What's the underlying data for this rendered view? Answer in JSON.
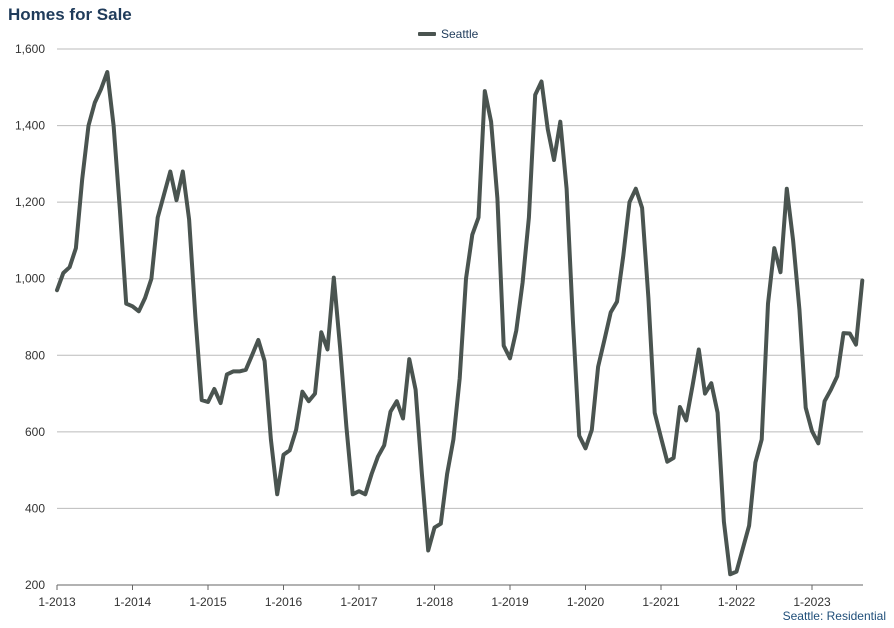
{
  "chart_data": {
    "type": "line",
    "title": "Homes for Sale",
    "legend": "top-center",
    "grid": true,
    "ylim": [
      200,
      1600
    ],
    "yticks": [
      200,
      400,
      600,
      800,
      1000,
      1200,
      1400,
      1600
    ],
    "xticks": [
      "1-2013",
      "1-2014",
      "1-2015",
      "1-2016",
      "1-2017",
      "1-2018",
      "1-2019",
      "1-2020",
      "1-2021",
      "1-2022",
      "1-2023"
    ],
    "series": [
      {
        "name": "Seattle",
        "color": "#4a5450",
        "values": [
          970,
          1015,
          1030,
          1080,
          1260,
          1400,
          1460,
          1495,
          1540,
          1400,
          1180,
          935,
          928,
          915,
          950,
          1000,
          1160,
          1220,
          1280,
          1205,
          1280,
          1155,
          900,
          683,
          678,
          712,
          675,
          750,
          758,
          758,
          762,
          800,
          840,
          785,
          580,
          437,
          540,
          552,
          605,
          705,
          680,
          700,
          860,
          815,
          1003,
          820,
          613,
          437,
          445,
          437,
          490,
          535,
          565,
          653,
          680,
          635,
          790,
          710,
          490,
          290,
          350,
          360,
          490,
          580,
          740,
          1000,
          1115,
          1160,
          1490,
          1410,
          1210,
          825,
          792,
          865,
          990,
          1160,
          1480,
          1515,
          1390,
          1310,
          1410,
          1235,
          890,
          590,
          557,
          605,
          770,
          840,
          912,
          940,
          1060,
          1200,
          1235,
          1185,
          950,
          650,
          585,
          522,
          532,
          665,
          630,
          720,
          815,
          700,
          727,
          650,
          365,
          228,
          235,
          295,
          355,
          520,
          580,
          935,
          1080,
          1017,
          1235,
          1100,
          920,
          663,
          602,
          570,
          680,
          710,
          745,
          858,
          857,
          828,
          995
        ]
      }
    ]
  },
  "footer": "Seattle: Residential"
}
